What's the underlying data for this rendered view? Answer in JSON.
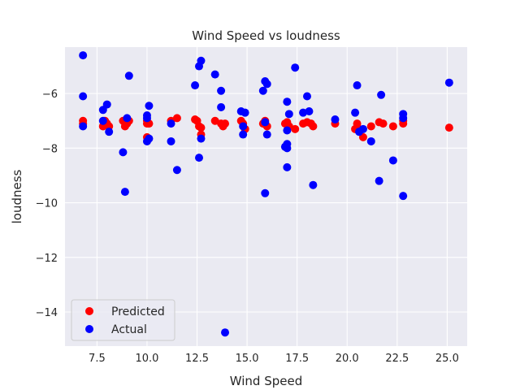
{
  "chart_data": {
    "type": "scatter",
    "title": "Wind Speed vs loudness",
    "xlabel": "Wind Speed",
    "ylabel": "loudness",
    "xlim": [
      5.9,
      26.0
    ],
    "ylim": [
      -15.25,
      -4.3
    ],
    "xticks": [
      {
        "value": 7.5,
        "label": "7.5"
      },
      {
        "value": 10.0,
        "label": "10.0"
      },
      {
        "value": 12.5,
        "label": "12.5"
      },
      {
        "value": 15.0,
        "label": "15.0"
      },
      {
        "value": 17.5,
        "label": "17.5"
      },
      {
        "value": 20.0,
        "label": "20.0"
      },
      {
        "value": 22.5,
        "label": "22.5"
      },
      {
        "value": 25.0,
        "label": "25.0"
      }
    ],
    "yticks": [
      {
        "value": -6,
        "label": "−6"
      },
      {
        "value": -8,
        "label": "−8"
      },
      {
        "value": -10,
        "label": "−10"
      },
      {
        "value": -12,
        "label": "−12"
      },
      {
        "value": -14,
        "label": "−14"
      }
    ],
    "grid": true,
    "background": "#eaeaf2",
    "legend_position": "bottom-left",
    "series": [
      {
        "name": "Predicted",
        "color": "#ff0000",
        "points": [
          [
            6.8,
            -7.0
          ],
          [
            6.8,
            -7.1
          ],
          [
            7.8,
            -7.2
          ],
          [
            7.9,
            -7.0
          ],
          [
            8.0,
            -7.1
          ],
          [
            8.1,
            -7.2
          ],
          [
            8.8,
            -7.0
          ],
          [
            8.9,
            -7.2
          ],
          [
            9.0,
            -7.1
          ],
          [
            9.1,
            -7.0
          ],
          [
            10.0,
            -7.0
          ],
          [
            10.0,
            -7.1
          ],
          [
            10.0,
            -7.6
          ],
          [
            10.1,
            -7.1
          ],
          [
            11.2,
            -7.0
          ],
          [
            11.5,
            -6.9
          ],
          [
            12.4,
            -6.95
          ],
          [
            12.5,
            -7.0
          ],
          [
            12.6,
            -7.2
          ],
          [
            12.7,
            -7.25
          ],
          [
            12.7,
            -7.5
          ],
          [
            13.4,
            -7.0
          ],
          [
            13.7,
            -7.1
          ],
          [
            13.8,
            -7.2
          ],
          [
            13.9,
            -7.1
          ],
          [
            14.7,
            -7.0
          ],
          [
            14.8,
            -7.1
          ],
          [
            14.9,
            -7.3
          ],
          [
            15.8,
            -7.1
          ],
          [
            15.9,
            -7.0
          ],
          [
            16.0,
            -7.2
          ],
          [
            16.9,
            -7.1
          ],
          [
            17.0,
            -7.05
          ],
          [
            17.1,
            -7.2
          ],
          [
            17.4,
            -7.3
          ],
          [
            17.8,
            -7.1
          ],
          [
            18.0,
            -7.05
          ],
          [
            18.2,
            -7.1
          ],
          [
            18.3,
            -7.2
          ],
          [
            19.4,
            -7.1
          ],
          [
            20.4,
            -7.3
          ],
          [
            20.5,
            -7.1
          ],
          [
            20.6,
            -7.3
          ],
          [
            20.8,
            -7.6
          ],
          [
            21.2,
            -7.2
          ],
          [
            21.6,
            -7.05
          ],
          [
            21.8,
            -7.1
          ],
          [
            22.3,
            -7.2
          ],
          [
            22.8,
            -7.1
          ],
          [
            22.8,
            -7.0
          ],
          [
            25.1,
            -7.25
          ]
        ]
      },
      {
        "name": "Actual",
        "color": "#0000ff",
        "points": [
          [
            6.8,
            -4.6
          ],
          [
            6.8,
            -6.1
          ],
          [
            6.8,
            -7.2
          ],
          [
            7.8,
            -6.6
          ],
          [
            7.8,
            -7.0
          ],
          [
            8.0,
            -6.4
          ],
          [
            8.1,
            -7.4
          ],
          [
            8.8,
            -8.15
          ],
          [
            8.9,
            -9.6
          ],
          [
            9.0,
            -6.9
          ],
          [
            9.1,
            -5.35
          ],
          [
            10.0,
            -6.8
          ],
          [
            10.0,
            -6.9
          ],
          [
            10.0,
            -7.75
          ],
          [
            10.1,
            -6.45
          ],
          [
            10.1,
            -7.65
          ],
          [
            11.2,
            -7.75
          ],
          [
            11.2,
            -7.1
          ],
          [
            11.5,
            -8.8
          ],
          [
            12.4,
            -5.7
          ],
          [
            12.6,
            -5.0
          ],
          [
            12.6,
            -8.35
          ],
          [
            12.7,
            -4.8
          ],
          [
            12.7,
            -7.65
          ],
          [
            13.4,
            -5.3
          ],
          [
            13.7,
            -5.9
          ],
          [
            13.7,
            -6.5
          ],
          [
            13.9,
            -14.75
          ],
          [
            14.7,
            -6.65
          ],
          [
            14.8,
            -7.2
          ],
          [
            14.8,
            -7.5
          ],
          [
            14.9,
            -6.7
          ],
          [
            15.8,
            -5.9
          ],
          [
            15.9,
            -5.55
          ],
          [
            15.9,
            -7.05
          ],
          [
            15.9,
            -9.65
          ],
          [
            16.0,
            -5.65
          ],
          [
            16.0,
            -7.5
          ],
          [
            16.9,
            -7.95
          ],
          [
            17.0,
            -6.3
          ],
          [
            17.0,
            -7.35
          ],
          [
            17.0,
            -7.85
          ],
          [
            17.0,
            -8.0
          ],
          [
            17.0,
            -8.7
          ],
          [
            17.1,
            -6.75
          ],
          [
            17.4,
            -5.05
          ],
          [
            17.8,
            -6.7
          ],
          [
            18.0,
            -6.1
          ],
          [
            18.1,
            -6.65
          ],
          [
            18.3,
            -9.35
          ],
          [
            19.4,
            -6.95
          ],
          [
            20.4,
            -6.7
          ],
          [
            20.5,
            -5.7
          ],
          [
            20.6,
            -7.4
          ],
          [
            20.8,
            -7.3
          ],
          [
            21.2,
            -7.75
          ],
          [
            21.6,
            -9.2
          ],
          [
            21.7,
            -6.05
          ],
          [
            22.3,
            -8.45
          ],
          [
            22.8,
            -6.75
          ],
          [
            22.8,
            -6.9
          ],
          [
            22.8,
            -9.75
          ],
          [
            25.1,
            -5.6
          ]
        ]
      }
    ]
  }
}
